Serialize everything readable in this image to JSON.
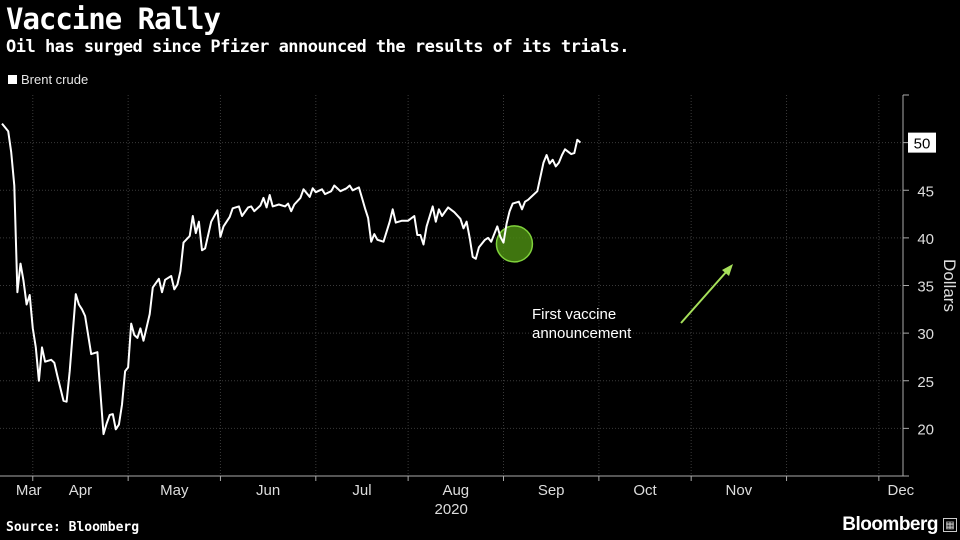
{
  "header": {
    "title": "Vaccine Rally",
    "subtitle": "Oil has surged since Pfizer announced the results of its trials."
  },
  "legend": {
    "label": "Brent crude"
  },
  "footer": {
    "source": "Source: Bloomberg",
    "brand": "Bloomberg",
    "brand_icon": "grid-icon"
  },
  "colors": {
    "line": "#ffffff",
    "arrow": "#a6e05a",
    "circle_fill": "#4a8a12",
    "circle_stroke": "#7fd13b"
  },
  "chart_data": {
    "type": "line",
    "title": "Vaccine Rally",
    "series": [
      {
        "name": "Brent crude"
      }
    ],
    "x_start": "2020-02-20",
    "x_end": "2020-12-03",
    "xlabel": "2020",
    "ylabel": "Dollars",
    "ylim": [
      15,
      55
    ],
    "yticks": [
      20,
      25,
      30,
      35,
      40,
      45,
      50
    ],
    "month_ticks": [
      {
        "date": "2020-03-01",
        "label": "Mar"
      },
      {
        "date": "2020-04-01",
        "label": "Apr"
      },
      {
        "date": "2020-05-01",
        "label": "May"
      },
      {
        "date": "2020-06-01",
        "label": "Jun"
      },
      {
        "date": "2020-07-01",
        "label": "Jul"
      },
      {
        "date": "2020-08-01",
        "label": "Aug"
      },
      {
        "date": "2020-09-01",
        "label": "Sep"
      },
      {
        "date": "2020-10-01",
        "label": "Oct"
      },
      {
        "date": "2020-11-01",
        "label": "Nov"
      },
      {
        "date": "2020-12-01",
        "label": "Dec"
      }
    ],
    "year_label": "2020",
    "last_value_label": "50",
    "values": [
      [
        0,
        52.0
      ],
      [
        2,
        51.2
      ],
      [
        3,
        49.0
      ],
      [
        4,
        45.5
      ],
      [
        5,
        34.3
      ],
      [
        6,
        37.3
      ],
      [
        7,
        35.5
      ],
      [
        8,
        33.0
      ],
      [
        9,
        34.0
      ],
      [
        10,
        30.5
      ],
      [
        11,
        28.5
      ],
      [
        12,
        25.0
      ],
      [
        13,
        28.5
      ],
      [
        14,
        27.0
      ],
      [
        16,
        27.2
      ],
      [
        17,
        26.9
      ],
      [
        18,
        25.5
      ],
      [
        20,
        22.9
      ],
      [
        21,
        22.8
      ],
      [
        22,
        26.0
      ],
      [
        24,
        34.1
      ],
      [
        25,
        33.0
      ],
      [
        26,
        32.5
      ],
      [
        27,
        31.8
      ],
      [
        29,
        27.8
      ],
      [
        31,
        28.0
      ],
      [
        33,
        19.4
      ],
      [
        34,
        20.5
      ],
      [
        35,
        21.4
      ],
      [
        36,
        21.5
      ],
      [
        37,
        19.9
      ],
      [
        38,
        20.4
      ],
      [
        39,
        22.5
      ],
      [
        40,
        26.0
      ],
      [
        41,
        26.4
      ],
      [
        42,
        31.0
      ],
      [
        43,
        29.8
      ],
      [
        44,
        29.5
      ],
      [
        45,
        30.5
      ],
      [
        46,
        29.2
      ],
      [
        48,
        32.0
      ],
      [
        49,
        34.8
      ],
      [
        51,
        35.7
      ],
      [
        52,
        34.3
      ],
      [
        53,
        35.6
      ],
      [
        55,
        36.0
      ],
      [
        56,
        34.6
      ],
      [
        57,
        35.1
      ],
      [
        58,
        36.5
      ],
      [
        59,
        39.5
      ],
      [
        61,
        40.2
      ],
      [
        62,
        42.3
      ],
      [
        63,
        40.5
      ],
      [
        64,
        41.7
      ],
      [
        65,
        38.7
      ],
      [
        66,
        38.9
      ],
      [
        68,
        41.7
      ],
      [
        70,
        42.9
      ],
      [
        71,
        40.1
      ],
      [
        72,
        41.2
      ],
      [
        74,
        42.2
      ],
      [
        75,
        43.1
      ],
      [
        77,
        43.3
      ],
      [
        78,
        42.3
      ],
      [
        80,
        43.2
      ],
      [
        81,
        43.3
      ],
      [
        82,
        42.8
      ],
      [
        84,
        43.4
      ],
      [
        85,
        44.2
      ],
      [
        86,
        43.2
      ],
      [
        87,
        44.5
      ],
      [
        88,
        43.3
      ],
      [
        90,
        43.5
      ],
      [
        92,
        43.3
      ],
      [
        93,
        43.6
      ],
      [
        94,
        42.8
      ],
      [
        95,
        43.5
      ],
      [
        97,
        44.2
      ],
      [
        98,
        45.1
      ],
      [
        100,
        44.3
      ],
      [
        101,
        45.2
      ],
      [
        102,
        44.8
      ],
      [
        104,
        45.1
      ],
      [
        105,
        44.6
      ],
      [
        107,
        44.9
      ],
      [
        108,
        45.5
      ],
      [
        110,
        44.9
      ],
      [
        112,
        45.2
      ],
      [
        113,
        45.5
      ],
      [
        114,
        45.0
      ],
      [
        116,
        45.3
      ],
      [
        117,
        44.2
      ],
      [
        118,
        43.1
      ],
      [
        119,
        42.1
      ],
      [
        120,
        39.6
      ],
      [
        121,
        40.4
      ],
      [
        122,
        39.8
      ],
      [
        124,
        39.6
      ],
      [
        126,
        41.7
      ],
      [
        127,
        43.0
      ],
      [
        128,
        41.6
      ],
      [
        130,
        41.8
      ],
      [
        132,
        41.8
      ],
      [
        134,
        42.3
      ],
      [
        135,
        40.3
      ],
      [
        136,
        40.3
      ],
      [
        137,
        39.3
      ],
      [
        138,
        41.2
      ],
      [
        140,
        43.3
      ],
      [
        141,
        41.7
      ],
      [
        142,
        43.0
      ],
      [
        143,
        42.3
      ],
      [
        145,
        43.2
      ],
      [
        147,
        42.7
      ],
      [
        149,
        42.0
      ],
      [
        150,
        41.0
      ],
      [
        151,
        41.7
      ],
      [
        152,
        40.0
      ],
      [
        153,
        38.0
      ],
      [
        154,
        37.8
      ],
      [
        155,
        39.0
      ],
      [
        157,
        39.8
      ],
      [
        158,
        40.0
      ],
      [
        159,
        39.6
      ],
      [
        161,
        41.2
      ],
      [
        162,
        40.1
      ],
      [
        163,
        39.5
      ],
      [
        164,
        41.5
      ],
      [
        165,
        42.8
      ],
      [
        166,
        43.6
      ],
      [
        168,
        43.8
      ],
      [
        169,
        43.0
      ],
      [
        170,
        43.8
      ],
      [
        171,
        44.0
      ],
      [
        172,
        44.3
      ],
      [
        174,
        44.9
      ],
      [
        175,
        46.4
      ],
      [
        176,
        47.9
      ],
      [
        177,
        48.7
      ],
      [
        178,
        47.8
      ],
      [
        179,
        48.2
      ],
      [
        180,
        47.5
      ],
      [
        181,
        47.9
      ],
      [
        182,
        48.7
      ],
      [
        183,
        49.3
      ],
      [
        185,
        48.8
      ],
      [
        186,
        48.9
      ],
      [
        187,
        50.3
      ],
      [
        188,
        50.0
      ]
    ],
    "annotation": {
      "label_line1": "First vaccine",
      "label_line2": "announcement",
      "date_offset": 162,
      "value": 40.0
    }
  }
}
